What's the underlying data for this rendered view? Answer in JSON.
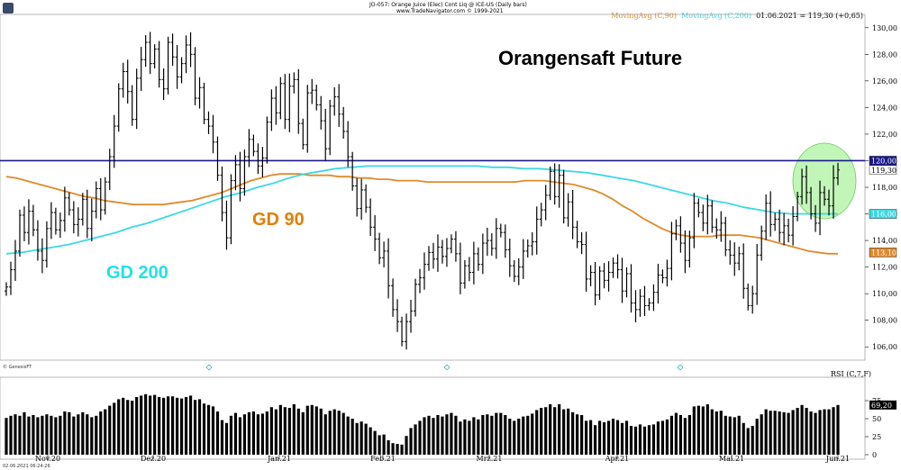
{
  "header": {
    "title_line": "JO-057: Orange Juice (Elec) Cont Liq @ ICE-US  (Daily bars)",
    "copyright_line": "www.TradeNavigator.com © 1999-2021",
    "legend_ma90": "MovingAvg (C,90)",
    "legend_ma200": "MovingAvg (C,200)",
    "legend_date": "01.06.2021",
    "legend_value": "= 119,30 (+0,65)",
    "provider": "© GenesisFT",
    "timestamp": "02.06.2021 06:24:26"
  },
  "annotations": {
    "headline": "Orangensaft Future",
    "gd90": "GD 90",
    "gd200": "GD 200"
  },
  "colors": {
    "bars": "#000000",
    "ma90": "#e08a2a",
    "ma200": "#3ed8e2",
    "resistance": "#1a1a8c",
    "highlight": "#90ee80",
    "rsi": "#000000"
  },
  "chart_data": {
    "type": "ohlc",
    "x_tick_labels": [
      "Nov.20",
      "Dez.20",
      "Jan.21",
      "Feb.21",
      "Mrz.21",
      "Apr.21",
      "Mai.21",
      "Jun.21"
    ],
    "price_axis": {
      "ylim": [
        105,
        131
      ],
      "ticks": [
        "106,00",
        "108,00",
        "110,00",
        "112,00",
        "114,00",
        "116,00",
        "118,00",
        "120,00",
        "122,00",
        "124,00",
        "126,00",
        "128,00",
        "130,00"
      ]
    },
    "price_closes": [
      110.5,
      111.8,
      113.2,
      115.9,
      114.6,
      116.2,
      114.8,
      113.2,
      112.5,
      114.9,
      116.1,
      114.8,
      115.5,
      117.2,
      116.3,
      115.2,
      115.6,
      117.1,
      114.9,
      116.2,
      117.9,
      116.3,
      118.4,
      120.3,
      122.6,
      125.4,
      126.7,
      125.2,
      123.1,
      126.2,
      127.6,
      128.9,
      127.3,
      128.4,
      126.1,
      125.4,
      128.9,
      127.8,
      126.3,
      127.3,
      128.7,
      128.0,
      124.7,
      125.5,
      123.1,
      122.6,
      121.4,
      118.9,
      116.1,
      114.2,
      118.5,
      119.7,
      117.9,
      120.3,
      121.6,
      120.7,
      119.6,
      120.2,
      122.9,
      124.7,
      123.6,
      125.8,
      123.1,
      125.6,
      126.1,
      122.8,
      121.2,
      125.1,
      125.3,
      124.2,
      123.0,
      120.9,
      124.1,
      124.8,
      123.5,
      122.2,
      120.3,
      118.1,
      116.4,
      117.8,
      116.5,
      115.0,
      114.1,
      112.7,
      113.2,
      110.6,
      108.8,
      107.9,
      106.4,
      107.9,
      108.7,
      110.7,
      111.2,
      112.2,
      113.1,
      112.6,
      113.5,
      112.8,
      113.4,
      114.1,
      113.0,
      110.8,
      112.1,
      111.6,
      113.0,
      112.2,
      113.8,
      114.0,
      113.4,
      114.9,
      114.6,
      113.3,
      112.1,
      111.3,
      112.0,
      113.2,
      113.6,
      113.9,
      115.6,
      116.3,
      117.4,
      119.2,
      117.3,
      118.9,
      115.7,
      116.9,
      115.0,
      113.9,
      113.7,
      111.1,
      111.6,
      109.9,
      111.7,
      111.0,
      111.6,
      112.3,
      111.8,
      110.2,
      111.5,
      109.3,
      108.8,
      109.8,
      109.1,
      109.3,
      110.1,
      111.4,
      111.2,
      111.9,
      114.5,
      115.1,
      113.8,
      112.5,
      114.2,
      116.8,
      116.1,
      115.3,
      116.6,
      115.0,
      114.8,
      115.3,
      113.3,
      112.9,
      112.3,
      113.0,
      110.4,
      109.1,
      110.0,
      112.9,
      114.7,
      116.8,
      115.2,
      115.6,
      114.6,
      115.1,
      114.4,
      115.8,
      117.3,
      118.8,
      117.6,
      116.0,
      115.3,
      117.6,
      117.1,
      116.6,
      118.7,
      119.3
    ],
    "ma90_y": [
      118.8,
      118.7,
      118.5,
      118.3,
      118.1,
      117.9,
      117.7,
      117.5,
      117.3,
      117.2,
      117.0,
      116.9,
      116.8,
      116.7,
      116.7,
      116.7,
      116.7,
      116.8,
      116.9,
      117.0,
      117.2,
      117.4,
      117.6,
      117.9,
      118.2,
      118.5,
      118.7,
      118.9,
      119.0,
      119.0,
      119.0,
      118.9,
      118.9,
      118.9,
      118.8,
      118.8,
      118.7,
      118.7,
      118.6,
      118.6,
      118.5,
      118.5,
      118.5,
      118.4,
      118.4,
      118.4,
      118.4,
      118.4,
      118.4,
      118.4,
      118.4,
      118.4,
      118.4,
      118.5,
      118.5,
      118.5,
      118.4,
      118.3,
      118.2,
      118.0,
      117.8,
      117.5,
      117.1,
      116.6,
      116.2,
      115.7,
      115.3,
      114.9,
      114.6,
      114.4,
      114.3,
      114.3,
      114.3,
      114.4,
      114.4,
      114.4,
      114.3,
      114.2,
      114.0,
      113.8,
      113.6,
      113.4,
      113.2,
      113.1,
      113.0,
      113.0
    ],
    "ma200_y": [
      113.0,
      113.1,
      113.3,
      113.5,
      113.7,
      114.0,
      114.3,
      114.6,
      115.0,
      115.3,
      115.7,
      116.1,
      116.5,
      116.9,
      117.3,
      117.6,
      118.0,
      118.3,
      118.7,
      119.0,
      119.2,
      119.4,
      119.5,
      119.6,
      119.6,
      119.6,
      119.6,
      119.6,
      119.6,
      119.6,
      119.6,
      119.5,
      119.5,
      119.4,
      119.4,
      119.3,
      119.2,
      119.1,
      118.9,
      118.7,
      118.5,
      118.2,
      117.9,
      117.6,
      117.3,
      117.0,
      116.8,
      116.5,
      116.3,
      116.1,
      116.0,
      116.0,
      116.0,
      116.0
    ],
    "reference_line": 120.0,
    "price_labels": [
      "120,00",
      "119,30",
      "116,00",
      "113,10"
    ],
    "rsi": {
      "axis_ticks": [
        "0",
        "25",
        "50",
        "75"
      ],
      "values": [
        51,
        54,
        56,
        54,
        59,
        53,
        55,
        52,
        54,
        56,
        54,
        52,
        54,
        60,
        59,
        53,
        56,
        59,
        56,
        52,
        54,
        60,
        63,
        68,
        72,
        77,
        79,
        76,
        75,
        80,
        82,
        84,
        82,
        83,
        80,
        79,
        81,
        81,
        79,
        78,
        80,
        82,
        76,
        77,
        71,
        69,
        67,
        60,
        48,
        44,
        54,
        58,
        52,
        56,
        59,
        60,
        56,
        57,
        60,
        66,
        63,
        69,
        66,
        65,
        70,
        64,
        59,
        68,
        69,
        67,
        64,
        56,
        61,
        63,
        61,
        58,
        53,
        50,
        44,
        46,
        43,
        38,
        33,
        27,
        28,
        20,
        16,
        15,
        14,
        26,
        37,
        42,
        47,
        52,
        54,
        51,
        55,
        53,
        56,
        58,
        54,
        46,
        49,
        47,
        52,
        49,
        55,
        56,
        54,
        58,
        58,
        55,
        50,
        47,
        50,
        53,
        54,
        57,
        62,
        65,
        66,
        70,
        66,
        70,
        63,
        64,
        59,
        56,
        55,
        47,
        48,
        41,
        47,
        45,
        47,
        50,
        48,
        44,
        47,
        40,
        39,
        42,
        39,
        41,
        42,
        46,
        47,
        49,
        54,
        58,
        55,
        51,
        55,
        67,
        68,
        67,
        70,
        63,
        60,
        61,
        54,
        53,
        52,
        54,
        44,
        37,
        40,
        50,
        56,
        63,
        61,
        61,
        60,
        59,
        58,
        62,
        65,
        69,
        65,
        60,
        58,
        62,
        63,
        63,
        66,
        69
      ]
    }
  }
}
